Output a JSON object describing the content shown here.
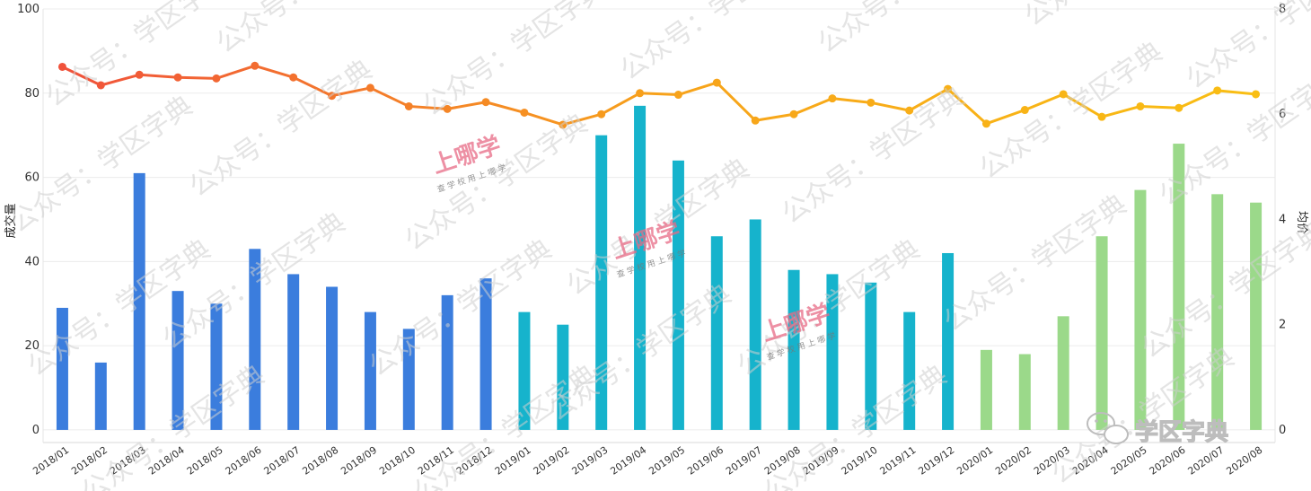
{
  "chart_data": {
    "type": "bar",
    "categories": [
      "2018/01",
      "2018/02",
      "2018/03",
      "2018/04",
      "2018/05",
      "2018/06",
      "2018/07",
      "2018/08",
      "2018/09",
      "2018/10",
      "2018/11",
      "2018/12",
      "2019/01",
      "2019/02",
      "2019/03",
      "2019/04",
      "2019/05",
      "2019/06",
      "2019/07",
      "2019/08",
      "2019/09",
      "2019/10",
      "2019/11",
      "2019/12",
      "2020/01",
      "2020/02",
      "2020/03",
      "2020/04",
      "2020/05",
      "2020/06",
      "2020/07",
      "2020/08"
    ],
    "series": [
      {
        "type": "bar",
        "axis": "left",
        "values": [
          29,
          16,
          61,
          33,
          30,
          43,
          37,
          34,
          28,
          24,
          32,
          36,
          28,
          25,
          70,
          77,
          64,
          46,
          50,
          38,
          37,
          35,
          28,
          42,
          19,
          18,
          27,
          46,
          57,
          68,
          56,
          54
        ]
      },
      {
        "type": "line",
        "axis": "right",
        "values": [
          6.9,
          6.55,
          6.75,
          6.7,
          6.68,
          6.92,
          6.7,
          6.35,
          6.5,
          6.15,
          6.1,
          6.23,
          6.03,
          5.8,
          6.0,
          6.4,
          6.37,
          6.6,
          5.88,
          6.0,
          6.3,
          6.22,
          6.07,
          6.48,
          5.82,
          6.08,
          6.38,
          5.95,
          6.15,
          6.12,
          6.45,
          6.38
        ]
      }
    ],
    "yleft": {
      "label": "成交量",
      "ticks": [
        0,
        20,
        40,
        60,
        80,
        100
      ],
      "range": [
        -3,
        100
      ]
    },
    "yright": {
      "label": "均价",
      "ticks": [
        0,
        2,
        4,
        6,
        8
      ],
      "range": [
        -0.24,
        8
      ]
    },
    "bar_colors": {
      "2018": "#3b7ddd",
      "2019": "#16b3cc",
      "2020": "#9bd98a"
    },
    "line_gradient": [
      "#f04f3c",
      "#f7a21b",
      "#f9bf13"
    ],
    "grid": true
  },
  "watermark": {
    "text": "公众号：学区字典",
    "brand": "上哪学",
    "brand_sub": "查 学 校   用 上 哪 学",
    "logo": "学区字典"
  },
  "icons": {
    "logo": "wechat-icon"
  }
}
